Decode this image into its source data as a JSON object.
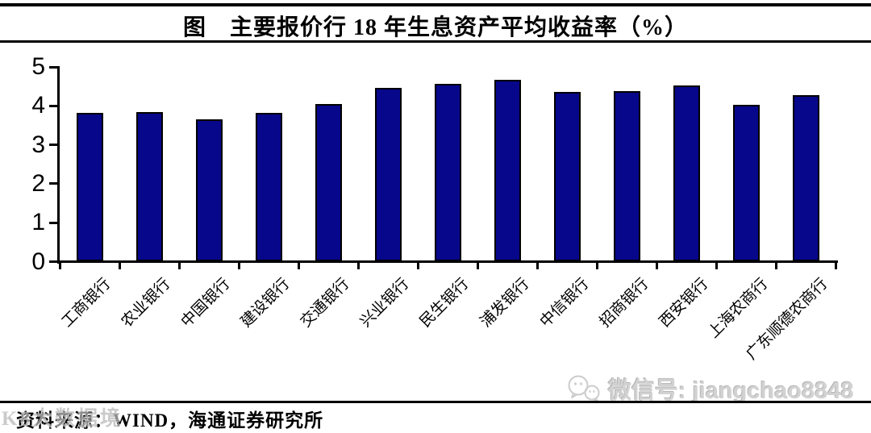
{
  "chart_data": {
    "type": "bar",
    "title": "图　主要报价行 18 年生息资产平均收益率（%）",
    "categories": [
      "工商银行",
      "农业银行",
      "中国银行",
      "建设银行",
      "交通银行",
      "兴业银行",
      "民生银行",
      "浦发银行",
      "中信银行",
      "招商银行",
      "西安银行",
      "上海农商行",
      "广东顺德农商行"
    ],
    "values": [
      3.82,
      3.84,
      3.66,
      3.83,
      4.04,
      4.47,
      4.56,
      4.67,
      4.36,
      4.37,
      4.53,
      4.02,
      4.27
    ],
    "xlabel": "",
    "ylabel": "",
    "ylim": [
      0,
      5
    ],
    "yticks": [
      0,
      1,
      2,
      3,
      4,
      5
    ],
    "grid": false,
    "legend": "none",
    "bar_color": "#07078b",
    "bar_border_color": "#000000"
  },
  "footer": {
    "source": "资料来源：WIND，海通证券研究所"
  },
  "watermarks": {
    "corner": "K8大数据境",
    "wechat_icon": "wechat-logo",
    "wechat": "微信号: jiangchao8848"
  }
}
